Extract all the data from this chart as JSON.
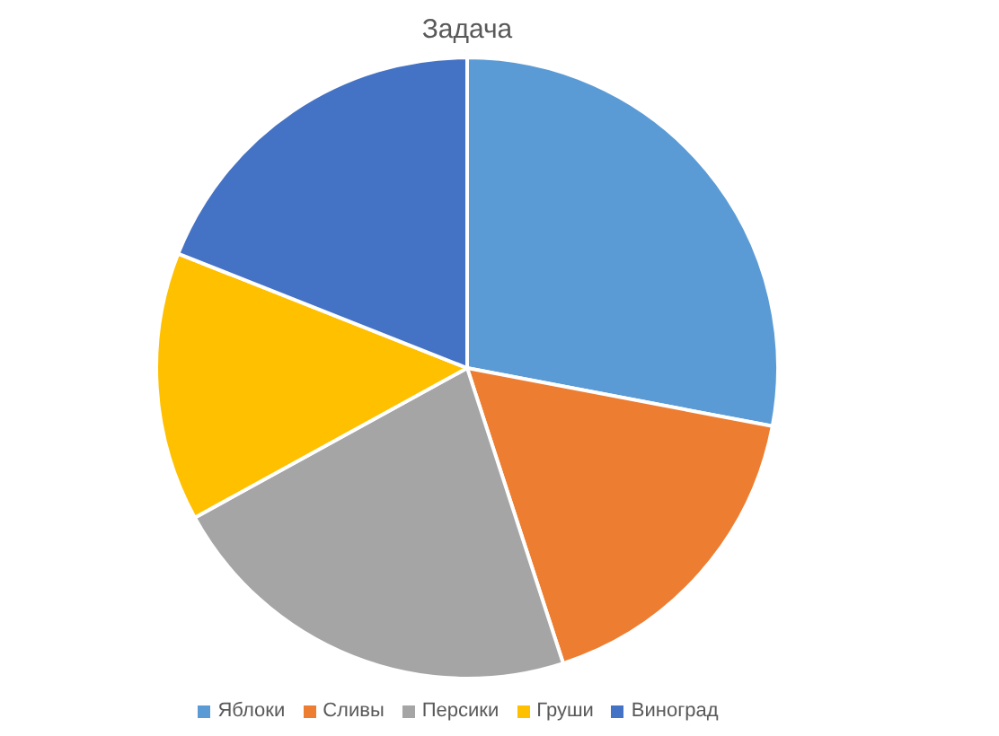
{
  "chart_data": {
    "type": "pie",
    "title": "Задача",
    "categories": [
      "Яблоки",
      "Сливы",
      "Персики",
      "Груши",
      "Виноград"
    ],
    "values": [
      28,
      17,
      22,
      14,
      19
    ],
    "colors": [
      "#5b9bd5",
      "#ed7d31",
      "#a5a5a5",
      "#ffc000",
      "#4472c4"
    ],
    "legend": "bottom"
  }
}
